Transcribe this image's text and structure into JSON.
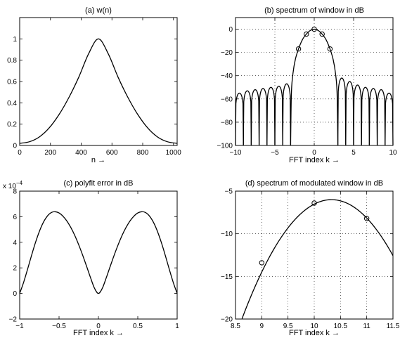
{
  "chart_data": [
    {
      "id": "a",
      "type": "line",
      "title": "(a) w(n)",
      "xlabel": "n →",
      "ylabel": "",
      "xlim": [
        0,
        1024
      ],
      "ylim": [
        0,
        1.2
      ],
      "xticks": [
        0,
        200,
        400,
        600,
        800,
        1000
      ],
      "xticklabels": [
        "0",
        "200",
        "400",
        "600",
        "800",
        "1000"
      ],
      "yticks": [
        0,
        0.2,
        0.4,
        0.6,
        0.8,
        1
      ],
      "yticklabels": [
        "0",
        "0.2",
        "0.4",
        "0.6",
        "0.8",
        "1"
      ],
      "grid": false,
      "series": [
        {
          "x": [
            0,
            64,
            128,
            192,
            256,
            320,
            384,
            448,
            512,
            576,
            640,
            704,
            768,
            832,
            896,
            960,
            1024
          ],
          "y": [
            0.02,
            0.035,
            0.08,
            0.165,
            0.29,
            0.45,
            0.64,
            0.86,
            1.0,
            0.86,
            0.64,
            0.45,
            0.29,
            0.165,
            0.08,
            0.035,
            0.02
          ]
        }
      ]
    },
    {
      "id": "b",
      "type": "line",
      "title": "(b) spectrum of window in dB",
      "xlabel": "FFT index k →",
      "ylabel": "",
      "xlim": [
        -10,
        10
      ],
      "ylim": [
        -100,
        10
      ],
      "xticks": [
        -10,
        -5,
        0,
        5,
        10
      ],
      "xticklabels": [
        "−10",
        "−5",
        "0",
        "5",
        "10"
      ],
      "yticks": [
        -100,
        -80,
        -60,
        -40,
        -20,
        0
      ],
      "yticklabels": [
        "−100",
        "−80",
        "−60",
        "−40",
        "−20",
        "0"
      ],
      "grid": true,
      "mainlobe": [
        {
          "x": -3.0,
          "y": -100
        },
        {
          "x": -2.9,
          "y": -55
        },
        {
          "x": -2.7,
          "y": -38
        },
        {
          "x": -2.4,
          "y": -26
        },
        {
          "x": -2.0,
          "y": -17
        },
        {
          "x": -1.5,
          "y": -9
        },
        {
          "x": -1.0,
          "y": -4.2
        },
        {
          "x": -0.5,
          "y": -1.1
        },
        {
          "x": 0,
          "y": 0
        },
        {
          "x": 0.5,
          "y": -1.1
        },
        {
          "x": 1.0,
          "y": -4.2
        },
        {
          "x": 1.5,
          "y": -9
        },
        {
          "x": 2.0,
          "y": -17
        },
        {
          "x": 2.4,
          "y": -26
        },
        {
          "x": 2.7,
          "y": -38
        },
        {
          "x": 2.9,
          "y": -55
        },
        {
          "x": 3.0,
          "y": -100
        }
      ],
      "sidelobe_peaks": [
        {
          "x": -9.5,
          "y": -55
        },
        {
          "x": -8.5,
          "y": -53
        },
        {
          "x": -7.5,
          "y": -52
        },
        {
          "x": -6.5,
          "y": -51
        },
        {
          "x": -5.5,
          "y": -50
        },
        {
          "x": -4.5,
          "y": -49
        },
        {
          "x": -3.5,
          "y": -47
        },
        {
          "x": 3.5,
          "y": -42
        },
        {
          "x": 4.5,
          "y": -45
        },
        {
          "x": 5.5,
          "y": -48
        },
        {
          "x": 6.5,
          "y": -50
        },
        {
          "x": 7.5,
          "y": -51
        },
        {
          "x": 8.5,
          "y": -52
        },
        {
          "x": 9.5,
          "y": -55
        }
      ],
      "markers": [
        {
          "x": -2,
          "y": -17
        },
        {
          "x": -1,
          "y": -4.2
        },
        {
          "x": 0,
          "y": 0
        },
        {
          "x": 1,
          "y": -4.2
        },
        {
          "x": 2,
          "y": -17
        }
      ]
    },
    {
      "id": "c",
      "type": "line",
      "title": "(c) polyfit error in dB",
      "xlabel": "FFT index k →",
      "ylabel": "",
      "ylabel_multiplier": "x 10",
      "ylabel_exponent": "−4",
      "xlim": [
        -1,
        1
      ],
      "ylim": [
        -2,
        8
      ],
      "xticks": [
        -1,
        -0.5,
        0,
        0.5,
        1
      ],
      "xticklabels": [
        "−1",
        "−0.5",
        "0",
        "0.5",
        "1"
      ],
      "yticks": [
        -2,
        0,
        2,
        4,
        6,
        8
      ],
      "yticklabels": [
        "−2",
        "0",
        "2",
        "4",
        "6",
        "8"
      ],
      "grid": false,
      "series": [
        {
          "x": [
            -1.0,
            -0.95,
            -0.9,
            -0.85,
            -0.8,
            -0.75,
            -0.7,
            -0.65,
            -0.6,
            -0.55,
            -0.5,
            -0.45,
            -0.4,
            -0.35,
            -0.3,
            -0.25,
            -0.2,
            -0.15,
            -0.1,
            -0.05,
            0.0,
            0.05,
            0.1,
            0.15,
            0.2,
            0.25,
            0.3,
            0.35,
            0.4,
            0.45,
            0.5,
            0.55,
            0.6,
            0.65,
            0.7,
            0.75,
            0.8,
            0.85,
            0.9,
            0.95,
            1.0
          ],
          "y": [
            0.0,
            0.87,
            1.89,
            2.96,
            3.97,
            4.85,
            5.55,
            6.04,
            6.32,
            6.39,
            6.29,
            6.04,
            5.66,
            5.15,
            4.53,
            3.8,
            2.99,
            2.12,
            1.23,
            0.41,
            0.0,
            0.41,
            1.23,
            2.12,
            2.99,
            3.8,
            4.53,
            5.15,
            5.66,
            6.04,
            6.29,
            6.39,
            6.32,
            6.04,
            5.55,
            4.85,
            3.97,
            2.96,
            1.89,
            0.87,
            0.0
          ]
        }
      ]
    },
    {
      "id": "d",
      "type": "line",
      "title": "(d) spectrum of modulated window in dB",
      "xlabel": "FFT index k →",
      "ylabel": "",
      "xlim": [
        8.5,
        11.5
      ],
      "ylim": [
        -20,
        -5
      ],
      "xticks": [
        8.5,
        9,
        9.5,
        10,
        10.5,
        11,
        11.5
      ],
      "xticklabels": [
        "8.5",
        "9",
        "9.5",
        "10",
        "10.5",
        "11",
        "11.5"
      ],
      "yticks": [
        -20,
        -15,
        -10,
        -5
      ],
      "yticklabels": [
        "−20",
        "−15",
        "−10",
        "−5"
      ],
      "grid": true,
      "peak": {
        "x": 10.33,
        "y": -6.0
      },
      "curvature": 4.8,
      "markers": [
        {
          "x": 9,
          "y": -13.4
        },
        {
          "x": 10,
          "y": -6.4
        },
        {
          "x": 11,
          "y": -8.2
        }
      ]
    }
  ]
}
